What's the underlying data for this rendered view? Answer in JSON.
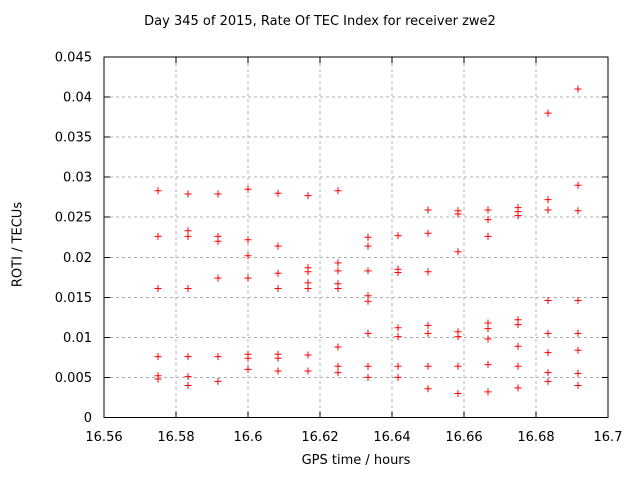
{
  "chart_data": {
    "type": "scatter",
    "title": "Day 345 of 2015, Rate Of TEC Index for receiver zwe2",
    "xlabel": "GPS time / hours",
    "ylabel": "ROTI / TECUs",
    "xlim": [
      16.56,
      16.7
    ],
    "ylim": [
      0,
      0.045
    ],
    "xticks": [
      16.56,
      16.58,
      16.6,
      16.62,
      16.64,
      16.66,
      16.68,
      16.7
    ],
    "xtick_labels": [
      "16.56",
      "16.58",
      "16.6",
      "16.62",
      "16.64",
      "16.66",
      "16.68",
      "16.7"
    ],
    "yticks": [
      0,
      0.005,
      0.01,
      0.015,
      0.02,
      0.025,
      0.03,
      0.035,
      0.04,
      0.045
    ],
    "ytick_labels": [
      "0",
      "0.005",
      "0.01",
      "0.015",
      "0.02",
      "0.025",
      "0.03",
      "0.035",
      "0.04",
      "0.045"
    ],
    "grid": "dashed",
    "legend": "none",
    "marker": "plus",
    "colors": {
      "points": "#ff0000",
      "grid": "#b0b0b0",
      "axis": "#000000",
      "background": "#ffffff"
    },
    "series": [
      {
        "name": "ROTI",
        "points": [
          [
            16.575,
            0.0283
          ],
          [
            16.575,
            0.0226
          ],
          [
            16.575,
            0.0161
          ],
          [
            16.575,
            0.0076
          ],
          [
            16.575,
            0.0052
          ],
          [
            16.575,
            0.0048
          ],
          [
            16.58333,
            0.0279
          ],
          [
            16.58333,
            0.0233
          ],
          [
            16.58333,
            0.0226
          ],
          [
            16.58333,
            0.0161
          ],
          [
            16.58333,
            0.0076
          ],
          [
            16.58333,
            0.0051
          ],
          [
            16.58333,
            0.004
          ],
          [
            16.59167,
            0.0279
          ],
          [
            16.59167,
            0.0226
          ],
          [
            16.59167,
            0.022
          ],
          [
            16.59167,
            0.0174
          ],
          [
            16.59167,
            0.0076
          ],
          [
            16.59167,
            0.0045
          ],
          [
            16.6,
            0.0285
          ],
          [
            16.6,
            0.0222
          ],
          [
            16.6,
            0.0202
          ],
          [
            16.6,
            0.0174
          ],
          [
            16.6,
            0.0079
          ],
          [
            16.6,
            0.0074
          ],
          [
            16.6,
            0.006
          ],
          [
            16.60833,
            0.028
          ],
          [
            16.60833,
            0.0214
          ],
          [
            16.60833,
            0.018
          ],
          [
            16.60833,
            0.0161
          ],
          [
            16.60833,
            0.0079
          ],
          [
            16.60833,
            0.0074
          ],
          [
            16.60833,
            0.0058
          ],
          [
            16.61667,
            0.0277
          ],
          [
            16.61667,
            0.0187
          ],
          [
            16.61667,
            0.0182
          ],
          [
            16.61667,
            0.0168
          ],
          [
            16.61667,
            0.0161
          ],
          [
            16.61667,
            0.0078
          ],
          [
            16.61667,
            0.0058
          ],
          [
            16.625,
            0.0283
          ],
          [
            16.625,
            0.0193
          ],
          [
            16.625,
            0.0183
          ],
          [
            16.625,
            0.0167
          ],
          [
            16.625,
            0.0161
          ],
          [
            16.625,
            0.0088
          ],
          [
            16.625,
            0.0064
          ],
          [
            16.625,
            0.0056
          ],
          [
            16.63333,
            0.0225
          ],
          [
            16.63333,
            0.0214
          ],
          [
            16.63333,
            0.0183
          ],
          [
            16.63333,
            0.0152
          ],
          [
            16.63333,
            0.0145
          ],
          [
            16.63333,
            0.0105
          ],
          [
            16.63333,
            0.0064
          ],
          [
            16.63333,
            0.005
          ],
          [
            16.64167,
            0.0227
          ],
          [
            16.64167,
            0.0185
          ],
          [
            16.64167,
            0.0181
          ],
          [
            16.64167,
            0.0112
          ],
          [
            16.64167,
            0.0101
          ],
          [
            16.64167,
            0.0064
          ],
          [
            16.64167,
            0.005
          ],
          [
            16.65,
            0.0259
          ],
          [
            16.65,
            0.023
          ],
          [
            16.65,
            0.0182
          ],
          [
            16.65,
            0.0115
          ],
          [
            16.65,
            0.0105
          ],
          [
            16.65,
            0.0064
          ],
          [
            16.65,
            0.0036
          ],
          [
            16.65833,
            0.0258
          ],
          [
            16.65833,
            0.0254
          ],
          [
            16.65833,
            0.0207
          ],
          [
            16.65833,
            0.0107
          ],
          [
            16.65833,
            0.0101
          ],
          [
            16.65833,
            0.0064
          ],
          [
            16.65833,
            0.003
          ],
          [
            16.66667,
            0.0259
          ],
          [
            16.66667,
            0.0247
          ],
          [
            16.66667,
            0.0226
          ],
          [
            16.66667,
            0.0118
          ],
          [
            16.66667,
            0.0111
          ],
          [
            16.66667,
            0.0098
          ],
          [
            16.66667,
            0.0066
          ],
          [
            16.66667,
            0.0032
          ],
          [
            16.675,
            0.0262
          ],
          [
            16.675,
            0.0257
          ],
          [
            16.675,
            0.0252
          ],
          [
            16.675,
            0.0122
          ],
          [
            16.675,
            0.0116
          ],
          [
            16.675,
            0.0089
          ],
          [
            16.675,
            0.0064
          ],
          [
            16.675,
            0.0037
          ],
          [
            16.68333,
            0.038
          ],
          [
            16.68333,
            0.0272
          ],
          [
            16.68333,
            0.0259
          ],
          [
            16.68333,
            0.0146
          ],
          [
            16.68333,
            0.0105
          ],
          [
            16.68333,
            0.0081
          ],
          [
            16.68333,
            0.0056
          ],
          [
            16.68333,
            0.0045
          ],
          [
            16.69167,
            0.041
          ],
          [
            16.69167,
            0.029
          ],
          [
            16.69167,
            0.0258
          ],
          [
            16.69167,
            0.0146
          ],
          [
            16.69167,
            0.0105
          ],
          [
            16.69167,
            0.0084
          ],
          [
            16.69167,
            0.0055
          ],
          [
            16.69167,
            0.004
          ]
        ]
      }
    ]
  }
}
